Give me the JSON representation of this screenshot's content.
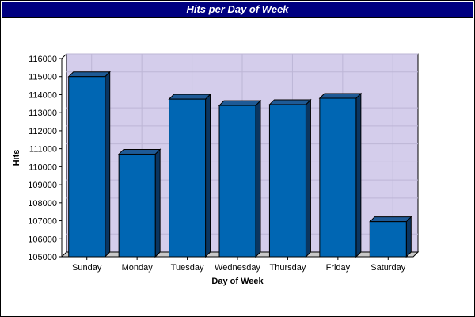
{
  "chart_data": {
    "type": "bar",
    "title": "Hits per Day of Week",
    "xlabel": "Day of Week",
    "ylabel": "Hits",
    "categories": [
      "Sunday",
      "Monday",
      "Tuesday",
      "Wednesday",
      "Thursday",
      "Friday",
      "Saturday"
    ],
    "values": [
      115000,
      110700,
      113750,
      113400,
      113450,
      113800,
      106950
    ],
    "ylim": [
      105000,
      116000
    ],
    "yticks": [
      105000,
      106000,
      107000,
      108000,
      109000,
      110000,
      111000,
      112000,
      113000,
      114000,
      115000,
      116000
    ],
    "grid": true,
    "style": "3d",
    "colors": {
      "bar_front": "#0066b3",
      "bar_top": "#1e5a96",
      "bar_side": "#0a3560",
      "plot_background": "#d4cdeb",
      "gridline": "#bdb6d6",
      "title_background": "#000080",
      "title_text": "#ffffff"
    }
  }
}
